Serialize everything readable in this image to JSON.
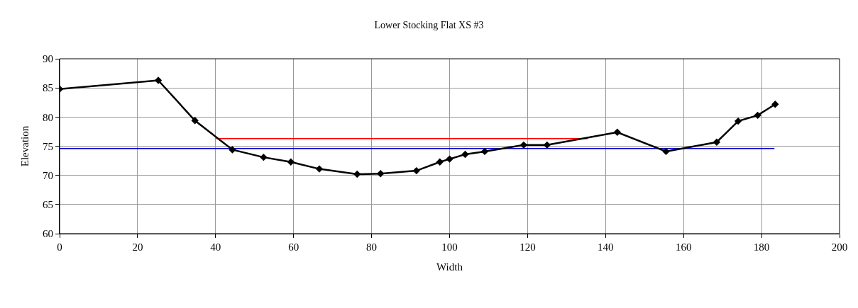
{
  "chart_data": {
    "type": "line",
    "title": "Lower Stocking Flat XS #3",
    "xlabel": "Width",
    "ylabel": "Elevation",
    "xlim": [
      0,
      200
    ],
    "xticks": [
      0,
      20,
      40,
      60,
      80,
      100,
      120,
      140,
      160,
      180,
      200
    ],
    "ylim": [
      60,
      90
    ],
    "yticks": [
      60,
      65,
      70,
      75,
      80,
      85,
      90
    ],
    "grid": true,
    "legend": false,
    "series": [
      {
        "color": "#ff0000",
        "marker": "none",
        "x": [
          40.1,
          135.4
        ],
        "values": [
          76.3,
          76.3
        ]
      },
      {
        "color": "#0000cc",
        "marker": "none",
        "x": [
          0,
          183.3
        ],
        "values": [
          74.6,
          74.6
        ]
      },
      {
        "color": "#000000",
        "marker": "diamond",
        "x": [
          0,
          25.3,
          34.7,
          44.3,
          52.3,
          59.3,
          66.6,
          76.3,
          82.3,
          91.5,
          97.5,
          100,
          104,
          109,
          119,
          125,
          143,
          155.5,
          168.5,
          174,
          179,
          183.5
        ],
        "values": [
          84.8,
          86.3,
          79.4,
          74.4,
          73.1,
          72.3,
          71.1,
          70.2,
          70.3,
          70.8,
          72.3,
          72.8,
          73.6,
          74.1,
          75.2,
          75.2,
          77.4,
          74.1,
          75.7,
          79.3,
          80.3,
          82.2
        ]
      }
    ]
  }
}
